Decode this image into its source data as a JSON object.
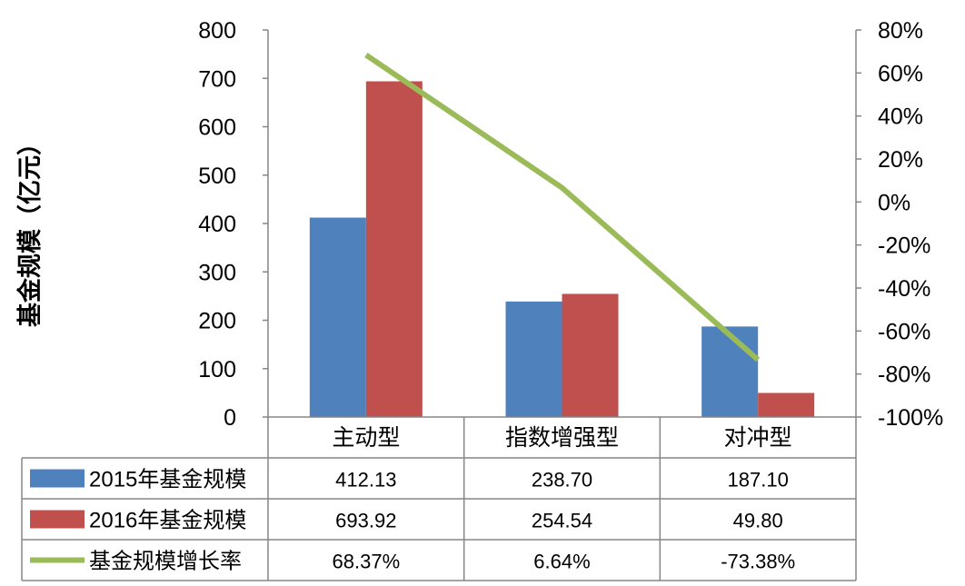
{
  "chart_data": {
    "type": "bar",
    "ylabel": "基金规模（亿元）",
    "categories": [
      "主动型",
      "指数增强型",
      "对冲型"
    ],
    "ylim": [
      0,
      800
    ],
    "y_ticks": [
      "0",
      "100",
      "200",
      "300",
      "400",
      "500",
      "600",
      "700",
      "800"
    ],
    "y2lim": [
      -100,
      80
    ],
    "y2_ticks": [
      "-100%",
      "-80%",
      "-60%",
      "-40%",
      "-20%",
      "0%",
      "20%",
      "40%",
      "60%",
      "80%"
    ],
    "grid": false,
    "legend": "data-table",
    "series": [
      {
        "name": "2015年基金规模",
        "type": "bar",
        "axis": "left",
        "color": "#4F81BD",
        "values": [
          412.13,
          238.7,
          187.1
        ],
        "labels": [
          "412.13",
          "238.70",
          "187.10"
        ]
      },
      {
        "name": "2016年基金规模",
        "type": "bar",
        "axis": "left",
        "color": "#C0504D",
        "values": [
          693.92,
          254.54,
          49.8
        ],
        "labels": [
          "693.92",
          "254.54",
          "49.80"
        ]
      },
      {
        "name": "基金规模增长率",
        "type": "line",
        "axis": "right",
        "color": "#9BBB59",
        "values": [
          68.37,
          6.64,
          -73.38
        ],
        "labels": [
          "68.37%",
          "6.64%",
          "-73.38%"
        ]
      }
    ]
  }
}
